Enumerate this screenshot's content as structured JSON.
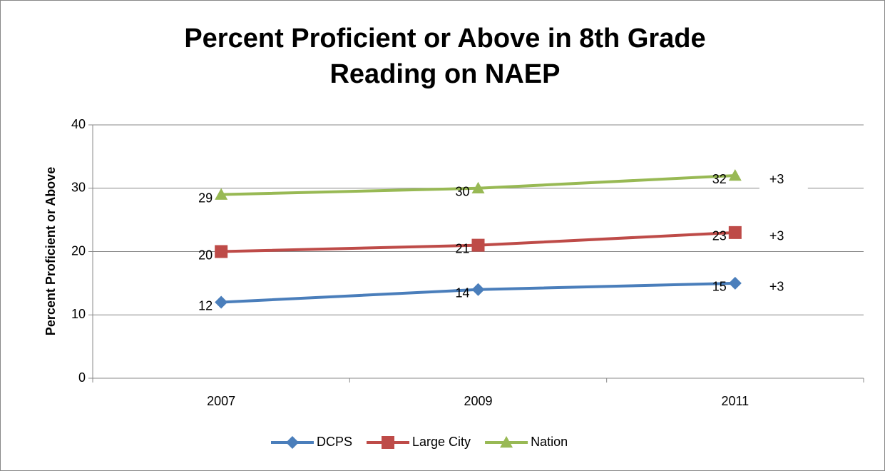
{
  "chart_data": {
    "type": "line",
    "title": [
      "Percent Proficient or Above in 8th Grade",
      "Reading on NAEP"
    ],
    "y_label": "Percent Proficient or Above",
    "categories": [
      "2007",
      "2009",
      "2011"
    ],
    "series": [
      {
        "name": "DCPS",
        "color": "#4a7ebb",
        "marker": "diamond",
        "values": [
          12,
          14,
          15
        ]
      },
      {
        "name": "Large City",
        "color": "#be4b48",
        "marker": "square",
        "values": [
          20,
          21,
          23
        ]
      },
      {
        "name": "Nation",
        "color": "#98b954",
        "marker": "triangle",
        "values": [
          29,
          30,
          32
        ]
      }
    ],
    "annotations": [
      "+3",
      "+3",
      "+3"
    ],
    "ylim": [
      0,
      40
    ],
    "yticks": [
      0,
      10,
      20,
      30,
      40
    ],
    "grid": true,
    "legend": "bottom"
  }
}
